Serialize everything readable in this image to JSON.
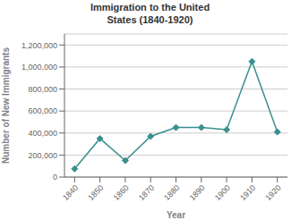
{
  "chart_data": {
    "type": "line",
    "title": "Immigration to the United\nStates (1840-1920)",
    "xlabel": "Year",
    "ylabel": "Number of New Immigrants",
    "x": [
      1840,
      1850,
      1860,
      1870,
      1880,
      1890,
      1900,
      1910,
      1920
    ],
    "values": [
      75000,
      350000,
      150000,
      370000,
      450000,
      450000,
      430000,
      1050000,
      410000
    ],
    "color": "#3a8f8f",
    "marker": "diamond",
    "xlim": [
      1836,
      1924
    ],
    "xticks": [
      1840,
      1850,
      1860,
      1870,
      1880,
      1890,
      1900,
      1910,
      1920
    ],
    "ylim": [
      0,
      1300000
    ],
    "yticks": [
      0,
      {
        "value": 200000,
        "label": "200,000"
      },
      {
        "value": 400000,
        "label": "400,000"
      },
      {
        "value": 600000,
        "label": "600,000"
      },
      {
        "value": 800000,
        "label": "800,000"
      },
      {
        "value": 1000000,
        "label": "1,000,000"
      },
      {
        "value": 1200000,
        "label": "1,200,000"
      }
    ],
    "grid": true
  }
}
